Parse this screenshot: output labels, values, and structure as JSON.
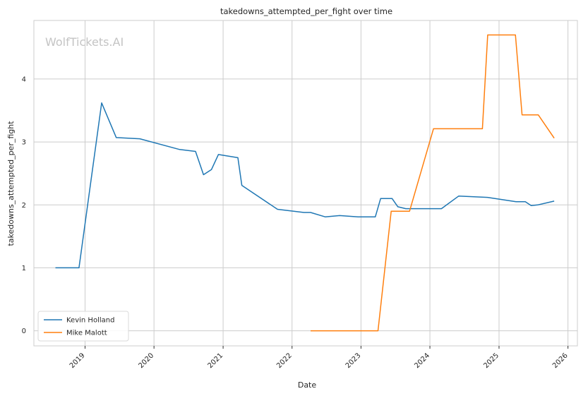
{
  "chart_data": {
    "type": "line",
    "title": "takedowns_attempted_per_fight over time",
    "xlabel": "Date",
    "ylabel": "takedowns_attempted_per_fight",
    "watermark": "WolfTickets.AI",
    "x_ticks": [
      "2019",
      "2020",
      "2021",
      "2022",
      "2023",
      "2024",
      "2025",
      "2026"
    ],
    "y_ticks": [
      "0",
      "1",
      "2",
      "3",
      "4"
    ],
    "xlim": [
      "2018-04-05",
      "2026-02-20"
    ],
    "ylim": [
      -0.24,
      4.93
    ],
    "grid": true,
    "legend_position": "lower-left",
    "series": [
      {
        "name": "Kevin Holland",
        "color": "#1f77b4",
        "points": [
          [
            "2018-07-28",
            1.0
          ],
          [
            "2018-11-30",
            1.0
          ],
          [
            "2019-03-30",
            3.62
          ],
          [
            "2019-06-15",
            3.07
          ],
          [
            "2019-10-18",
            3.05
          ],
          [
            "2020-05-16",
            2.88
          ],
          [
            "2020-08-08",
            2.85
          ],
          [
            "2020-09-19",
            2.48
          ],
          [
            "2020-10-31",
            2.56
          ],
          [
            "2020-12-07",
            2.8
          ],
          [
            "2021-03-20",
            2.75
          ],
          [
            "2021-04-10",
            2.31
          ],
          [
            "2021-10-16",
            1.93
          ],
          [
            "2022-03-05",
            1.88
          ],
          [
            "2022-04-09",
            1.88
          ],
          [
            "2022-06-25",
            1.81
          ],
          [
            "2022-09-10",
            1.83
          ],
          [
            "2022-12-17",
            1.81
          ],
          [
            "2023-03-18",
            1.81
          ],
          [
            "2023-04-15",
            2.1
          ],
          [
            "2023-06-15",
            2.1
          ],
          [
            "2023-07-15",
            1.97
          ],
          [
            "2023-08-26",
            1.94
          ],
          [
            "2024-01-15",
            1.94
          ],
          [
            "2024-03-02",
            1.94
          ],
          [
            "2024-06-01",
            2.14
          ],
          [
            "2024-11-01",
            2.12
          ],
          [
            "2025-04-01",
            2.05
          ],
          [
            "2025-05-20",
            2.05
          ],
          [
            "2025-06-20",
            1.99
          ],
          [
            "2025-07-25",
            2.0
          ],
          [
            "2025-10-20",
            2.06
          ]
        ]
      },
      {
        "name": "Mike Malott",
        "color": "#ff7f0e",
        "points": [
          [
            "2022-04-09",
            0.0
          ],
          [
            "2023-04-01",
            0.0
          ],
          [
            "2023-06-10",
            1.9
          ],
          [
            "2023-09-15",
            1.9
          ],
          [
            "2024-01-20",
            3.21
          ],
          [
            "2024-10-05",
            3.21
          ],
          [
            "2024-11-02",
            4.7
          ],
          [
            "2025-03-29",
            4.7
          ],
          [
            "2025-05-03",
            3.43
          ],
          [
            "2025-07-28",
            3.43
          ],
          [
            "2025-10-20",
            3.06
          ]
        ]
      }
    ]
  }
}
